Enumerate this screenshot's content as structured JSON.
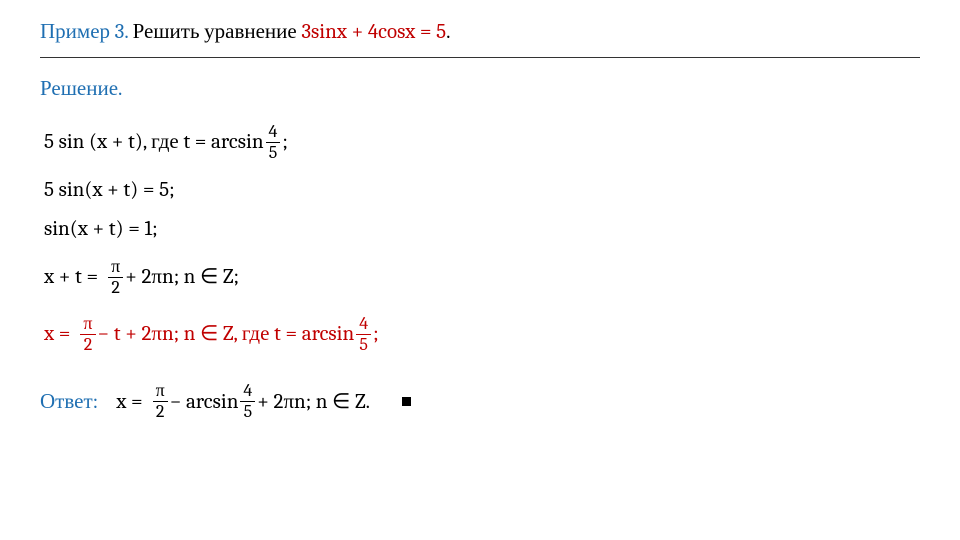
{
  "colors": {
    "blue": "#1f6fb2",
    "red": "#c00000",
    "text": "#000000",
    "rule": "#333333",
    "background": "#ffffff"
  },
  "typography": {
    "body_fontsize_pt": 16,
    "frac_fontsize_pt": 14,
    "family": "Cambria / Georgia / serif"
  },
  "title": {
    "label": "Пример 3.",
    "text": " Решить уравнение ",
    "equation": "3sinx + 4cosx = 5",
    "period": "."
  },
  "solution_label": "Решение.",
  "steps": {
    "s1_prefix": "5 sin (x + t), где t = arcsin",
    "s1_frac_num": "4",
    "s1_frac_den": "5",
    "s1_tail": " ;",
    "s2": "5 sin(x + t) = 5;",
    "s3": "sin(x + t) = 1;",
    "s4_pre": "x + t = ",
    "s4_frac_num": "π",
    "s4_frac_den": "2",
    "s4_post": " + 2πn; n ∈ Z;",
    "s5_pre": "x = ",
    "s5_frac_num": "π",
    "s5_frac_den": "2",
    "s5_mid": " − t + 2πn; n ∈ Z, где t = arcsin ",
    "s5_frac2_num": "4",
    "s5_frac2_den": "5",
    "s5_tail": " ;"
  },
  "answer": {
    "label": "Ответ:",
    "pre": "x = ",
    "frac1_num": "π",
    "frac1_den": "2",
    "mid": " − arcsin",
    "frac2_num": "4",
    "frac2_den": "5",
    "post": " + 2πn; n ∈ Z."
  }
}
